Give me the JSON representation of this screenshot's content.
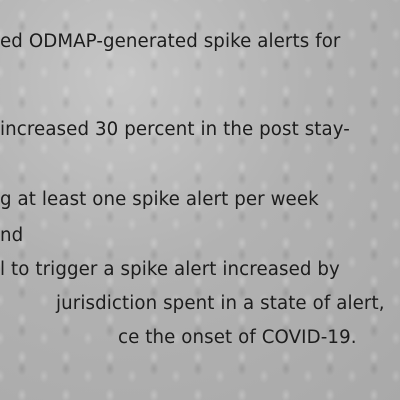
{
  "document": {
    "lines": [
      "ed ODMAP-generated spike alerts for",
      "increased 30 percent in the post stay-",
      "g at least one spike alert per week",
      "nd",
      "l to trigger a spike alert increased by",
      "jurisdiction spent in a state of alert,",
      "ce the onset of COVID-19."
    ]
  }
}
